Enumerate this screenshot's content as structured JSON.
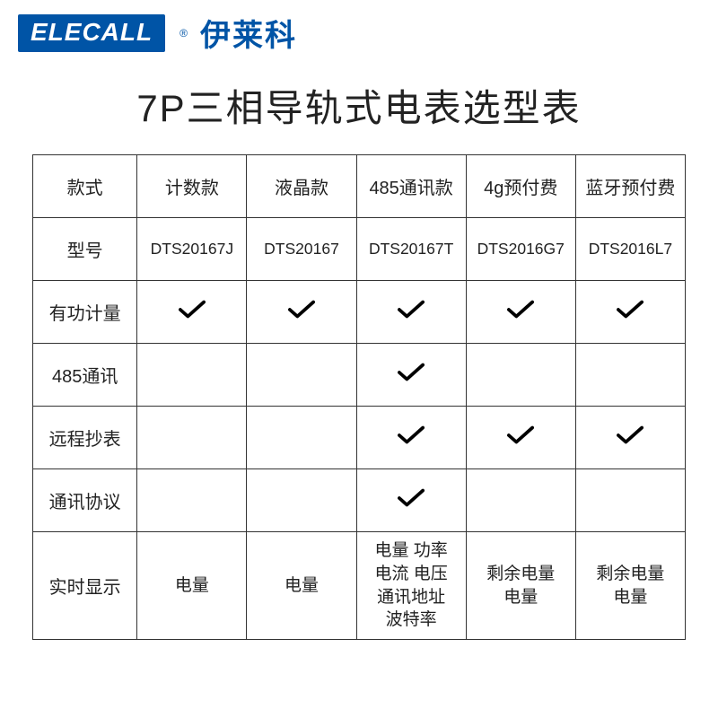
{
  "brand": {
    "logo_text": "ELECALL",
    "registered": "®",
    "cn_name": "伊莱科",
    "logo_bg": "#0054a6",
    "logo_fg": "#ffffff",
    "cn_color": "#0054a6"
  },
  "title": "7P三相导轨式电表选型表",
  "table": {
    "border_color": "#333333",
    "text_color": "#222222",
    "check_color": "#000000",
    "header_label": "款式",
    "columns": [
      "计数款",
      "液晶款",
      "485通讯款",
      "4g预付费",
      "蓝牙预付费"
    ],
    "rows": [
      {
        "label": "型号",
        "cells": [
          "DTS20167J",
          "DTS20167",
          "DTS20167T",
          "DTS2016G7",
          "DTS2016L7"
        ],
        "style": "model"
      },
      {
        "label": "有功计量",
        "cells": [
          "✔",
          "✔",
          "✔",
          "✔",
          "✔"
        ],
        "style": "check"
      },
      {
        "label": "485通讯",
        "cells": [
          "",
          "",
          "✔",
          "",
          ""
        ],
        "style": "check"
      },
      {
        "label": "远程抄表",
        "cells": [
          "",
          "",
          "✔",
          "✔",
          "✔"
        ],
        "style": "check"
      },
      {
        "label": "通讯协议",
        "cells": [
          "",
          "",
          "✔",
          "",
          ""
        ],
        "style": "check"
      },
      {
        "label": "实时显示",
        "cells": [
          "电量",
          "电量",
          "电量 功率\n电流 电压\n通讯地址\n波特率",
          "剩余电量\n电量",
          "剩余电量\n电量"
        ],
        "style": "multiline"
      }
    ]
  }
}
